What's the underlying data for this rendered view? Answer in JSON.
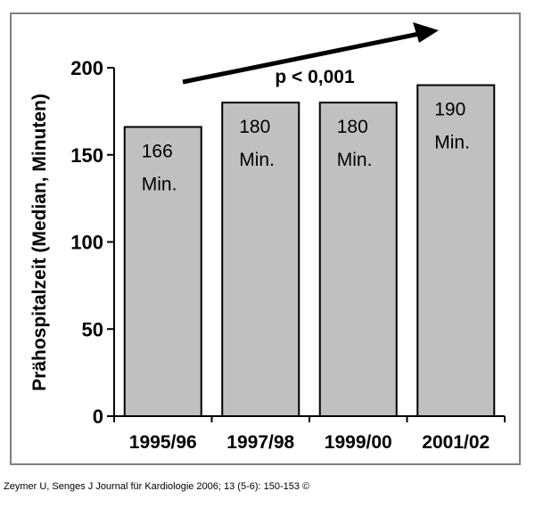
{
  "chart_data": {
    "type": "bar",
    "categories": [
      "1995/96",
      "1997/98",
      "1999/00",
      "2001/02"
    ],
    "values": [
      166,
      180,
      180,
      190
    ],
    "bar_labels": [
      [
        "166",
        "Min."
      ],
      [
        "180",
        "Min."
      ],
      [
        "180",
        "Min."
      ],
      [
        "190",
        "Min."
      ]
    ],
    "ylabel": "Prähospitalzeit (Median, Minuten)",
    "xlabel": "",
    "ylim": [
      0,
      200
    ],
    "yticks": [
      0,
      50,
      100,
      150,
      200
    ],
    "annotation": "p < 0,001",
    "trend_arrow": "increasing",
    "bar_color": "#c0c0c0",
    "grid": false
  },
  "citation": "Zeymer U, Senges J Journal für Kardiologie 2006; 13 (5-6): 150-153 ©"
}
